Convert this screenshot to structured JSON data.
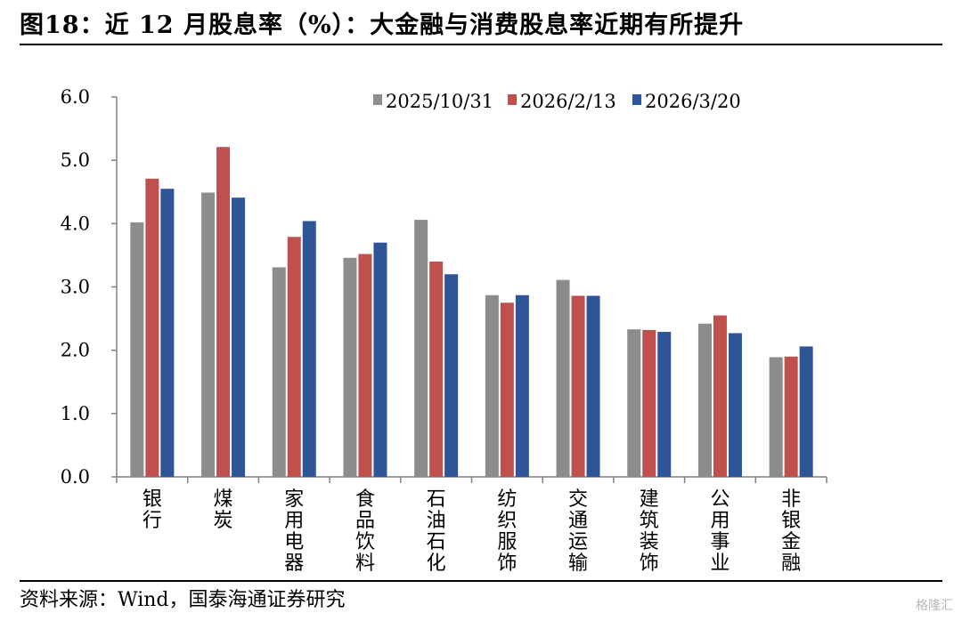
{
  "header": {
    "title": "图18：近 12 月股息率（%）：大金融与消费股息率近期有所提升"
  },
  "footer": {
    "source": "资料来源：Wind，国泰海通证券研究",
    "watermark": "格隆汇"
  },
  "chart_data": {
    "type": "bar",
    "title": "图18：近 12 月股息率（%）：大金融与消费股息率近期有所提升",
    "xlabel": "",
    "ylabel": "",
    "ylim": [
      0,
      6
    ],
    "yticks": [
      "0.0",
      "1.0",
      "2.0",
      "3.0",
      "4.0",
      "5.0",
      "6.0"
    ],
    "grid": false,
    "legend_position": "top",
    "categories": [
      "银行",
      "煤炭",
      "家用电器",
      "食品饮料",
      "石油石化",
      "纺织服饰",
      "交通运输",
      "建筑装饰",
      "公用事业",
      "非银金融"
    ],
    "series": [
      {
        "name": "2025/10/31",
        "color": "#8c8c8c",
        "values": [
          4.02,
          4.49,
          3.31,
          3.46,
          4.06,
          2.87,
          3.11,
          2.33,
          2.42,
          1.89
        ]
      },
      {
        "name": "2026/2/13",
        "color": "#c0504d",
        "values": [
          4.71,
          5.21,
          3.79,
          3.52,
          3.4,
          2.75,
          2.86,
          2.32,
          2.55,
          1.9
        ]
      },
      {
        "name": "2026/3/20",
        "color": "#2e5597",
        "values": [
          4.55,
          4.41,
          4.04,
          3.7,
          3.2,
          2.87,
          2.86,
          2.29,
          2.27,
          2.06
        ]
      }
    ]
  }
}
